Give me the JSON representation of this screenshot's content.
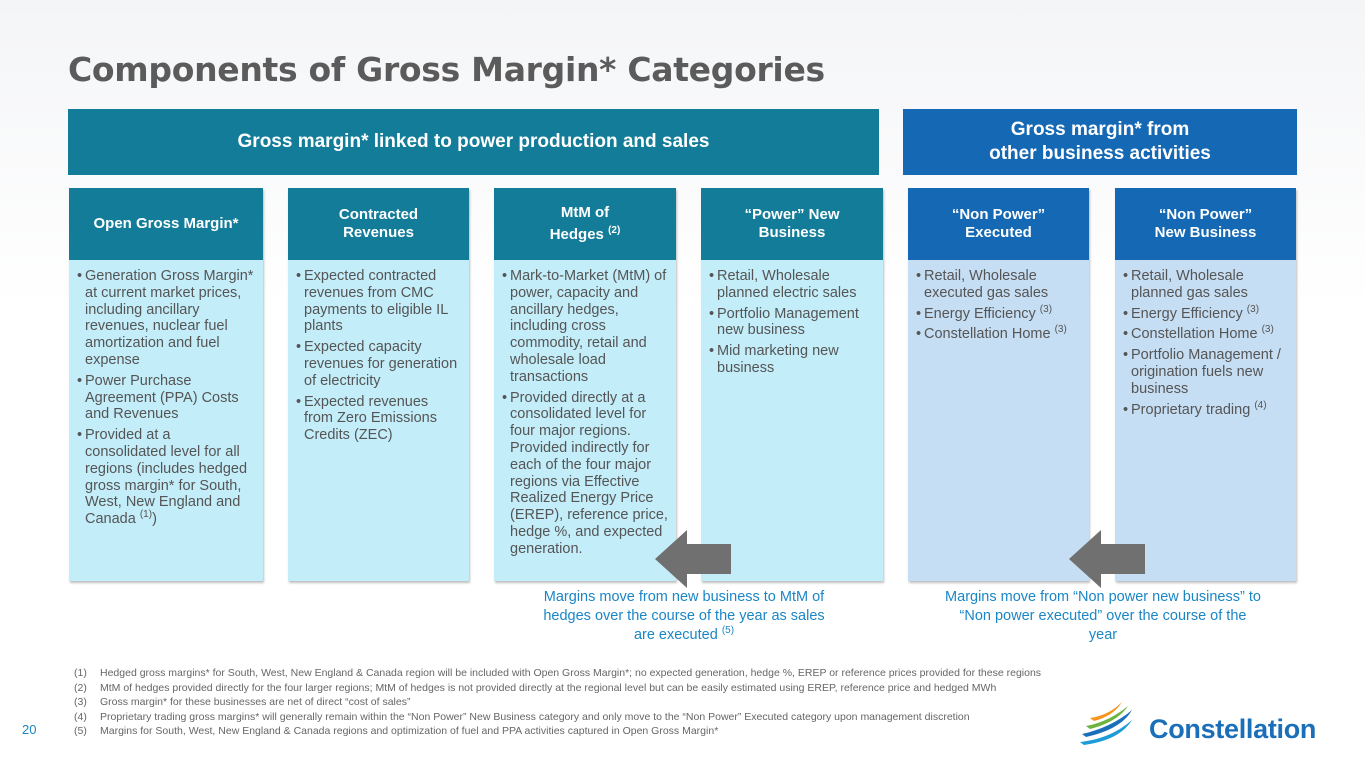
{
  "title": "Components of Gross Margin* Categories",
  "banners": {
    "left": "Gross margin* linked to power production and sales",
    "right": "Gross margin* from\nother business activities"
  },
  "columns": [
    {
      "heading": "Open Gross Margin*",
      "bullets": [
        {
          "text": "Generation Gross Margin* at current market prices, including ancillary revenues, nuclear fuel amortization and fuel expense"
        },
        {
          "text": "Power Purchase Agreement (PPA) Costs and Revenues"
        },
        {
          "text": "Provided at a consolidated level for all regions (includes hedged gross margin* for South, West, New England and Canada",
          "sup": "(1)",
          "after": ")"
        }
      ]
    },
    {
      "heading": "Contracted\nRevenues",
      "bullets": [
        {
          "text": "Expected contracted revenues from CMC payments to eligible IL plants"
        },
        {
          "text": "Expected capacity revenues for generation of electricity"
        },
        {
          "text": "Expected revenues from Zero Emissions Credits (ZEC)"
        }
      ]
    },
    {
      "heading": "MtM of\nHedges",
      "heading_sup": "(2)",
      "bullets": [
        {
          "text": "Mark-to-Market (MtM) of power, capacity and ancillary hedges, including cross commodity, retail and wholesale load transactions"
        },
        {
          "text": "Provided directly at a consolidated level for four major regions. Provided indirectly for each of the four major regions via Effective Realized Energy Price (EREP), reference price, hedge %, and expected generation."
        }
      ]
    },
    {
      "heading": "“Power” New\nBusiness",
      "bullets": [
        {
          "text": "Retail, Wholesale planned electric sales"
        },
        {
          "text": "Portfolio Management new business"
        },
        {
          "text": "Mid marketing new business"
        }
      ]
    },
    {
      "heading": "“Non Power”\nExecuted",
      "bullets": [
        {
          "text": "Retail, Wholesale executed gas sales"
        },
        {
          "text": "Energy Efficiency",
          "sup": "(3)"
        },
        {
          "text": "Constellation Home",
          "sup": "(3)"
        }
      ]
    },
    {
      "heading": "“Non Power”\nNew Business",
      "bullets": [
        {
          "text": "Retail, Wholesale planned gas sales"
        },
        {
          "text": "Energy Efficiency",
          "sup": "(3)"
        },
        {
          "text": "Constellation Home",
          "sup": "(3)"
        },
        {
          "text": "Portfolio Management / origination fuels new business"
        },
        {
          "text": "Proprietary trading",
          "sup": "(4)"
        }
      ]
    }
  ],
  "notes": {
    "left": "Margins move from new business to MtM of hedges over the course of the year as sales are executed",
    "left_sup": "(5)",
    "right": "Margins move from “Non power new business” to “Non power executed” over the course of the year"
  },
  "footnotes": [
    {
      "num": "(1)",
      "text": "Hedged gross margins* for South, West, New England & Canada region will be included with Open Gross Margin*; no expected generation, hedge %, EREP or reference prices provided for these regions"
    },
    {
      "num": "(2)",
      "text": "MtM of hedges provided directly for the four larger regions; MtM of hedges is not provided directly at the regional level but can be easily estimated using EREP, reference price and hedged MWh"
    },
    {
      "num": "(3)",
      "text": "Gross margin* for these businesses are net of direct “cost of sales”"
    },
    {
      "num": "(4)",
      "text": "Proprietary trading gross margins* will generally remain within the “Non Power” New Business category and only move to the “Non Power” Executed category upon management discretion"
    },
    {
      "num": "(5)",
      "text": "Margins for South, West, New England & Canada regions and optimization of fuel and PPA activities captured in Open Gross Margin*"
    }
  ],
  "page_number": "20",
  "logo_text": "Constellation",
  "colors": {
    "teal": "#137d99",
    "blue": "#1568b3",
    "light_teal": "#c3edf9",
    "light_blue": "#c6def3",
    "accent_text": "#1a86c6",
    "arrow": "#707070"
  }
}
